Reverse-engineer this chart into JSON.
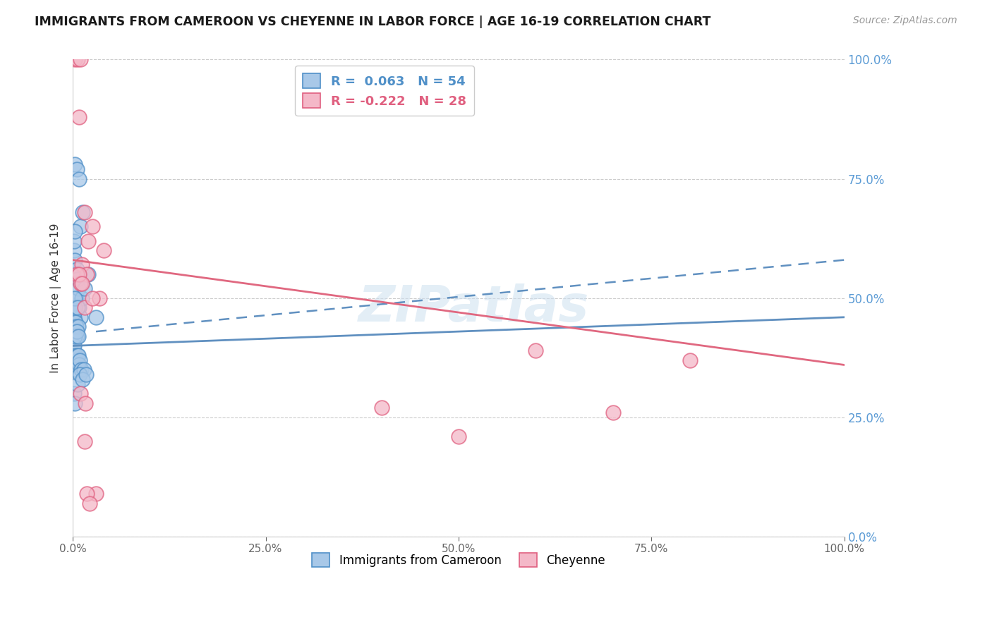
{
  "title": "IMMIGRANTS FROM CAMEROON VS CHEYENNE IN LABOR FORCE | AGE 16-19 CORRELATION CHART",
  "source": "Source: ZipAtlas.com",
  "ylabel": "In Labor Force | Age 16-19",
  "ytick_values": [
    0,
    25,
    50,
    75,
    100
  ],
  "xtick_values": [
    0,
    25,
    50,
    75,
    100
  ],
  "legend_blue_label": "Immigrants from Cameroon",
  "legend_pink_label": "Cheyenne",
  "R_blue": "0.063",
  "N_blue": "54",
  "R_pink": "-0.222",
  "N_pink": "28",
  "blue_fill": "#a8c8e8",
  "pink_fill": "#f4b8c8",
  "blue_edge": "#5090c8",
  "pink_edge": "#e06080",
  "blue_line": "#6090c0",
  "pink_line": "#e06880",
  "watermark": "ZIPatlas",
  "bg": "#ffffff",
  "blue_scatter_x": [
    0.3,
    0.5,
    0.8,
    1.0,
    1.3,
    0.15,
    0.2,
    0.25,
    0.3,
    0.35,
    0.4,
    0.5,
    0.6,
    0.7,
    0.8,
    1.0,
    1.2,
    1.5,
    2.0,
    0.1,
    0.15,
    0.2,
    0.25,
    0.3,
    0.35,
    0.4,
    0.45,
    0.5,
    0.6,
    0.7,
    0.05,
    0.1,
    0.15,
    0.2,
    0.25,
    0.3,
    0.35,
    0.4,
    0.5,
    0.6,
    0.7,
    0.8,
    0.9,
    1.1,
    1.4,
    3.0,
    0.2,
    0.3,
    0.6,
    0.9,
    1.3,
    1.7,
    0.5,
    0.7
  ],
  "blue_scatter_y": [
    78,
    77,
    75,
    65,
    68,
    60,
    62,
    64,
    58,
    55,
    50,
    56,
    54,
    52,
    48,
    46,
    50,
    52,
    55,
    44,
    46,
    47,
    48,
    50,
    45,
    43,
    44,
    42,
    48,
    44,
    40,
    38,
    37,
    40,
    42,
    35,
    38,
    36,
    37,
    38,
    38,
    36,
    37,
    35,
    35,
    46,
    30,
    28,
    32,
    34,
    33,
    34,
    43,
    42
  ],
  "pink_scatter_x": [
    0.3,
    0.6,
    1.0,
    0.8,
    1.5,
    2.0,
    2.5,
    4.0,
    1.2,
    1.8,
    3.5,
    0.5,
    1.0,
    1.5,
    2.5,
    40.0,
    50.0,
    60.0,
    70.0,
    80.0,
    1.5,
    3.0,
    1.8,
    2.2,
    0.8,
    1.2,
    1.0,
    1.6
  ],
  "pink_scatter_y": [
    100,
    100,
    100,
    88,
    68,
    62,
    65,
    60,
    57,
    55,
    50,
    55,
    53,
    48,
    50,
    27,
    21,
    39,
    26,
    37,
    20,
    9,
    9,
    7,
    55,
    53,
    30,
    28
  ],
  "blue_trend": [
    0,
    100,
    40,
    46
  ],
  "pink_trend": [
    0,
    100,
    58,
    36
  ],
  "blue_dashed_trend": [
    3,
    100,
    43,
    58
  ]
}
